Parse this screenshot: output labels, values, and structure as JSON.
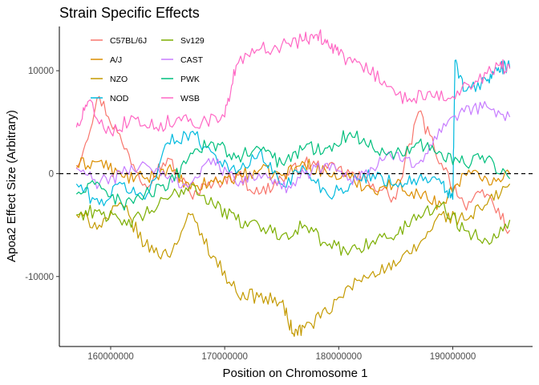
{
  "chart_data": {
    "type": "line",
    "title": "Strain Specific Effects",
    "xlabel": "Position on Chromosome 1",
    "ylabel": "Apoa2 Effect Size (Arbitrary)",
    "xlim": [
      155500000,
      197000000
    ],
    "ylim": [
      -16800,
      14300
    ],
    "x_ticks": [
      160000000,
      170000000,
      180000000,
      190000000
    ],
    "x_tick_labels": [
      "160000000",
      "170000000",
      "180000000",
      "190000000"
    ],
    "y_ticks": [
      -10000,
      0,
      10000
    ],
    "y_tick_labels": [
      "-10000",
      "0",
      "10000"
    ],
    "reference_line": {
      "y": 0,
      "style": "dashed"
    },
    "grid": false,
    "legend_position": "top-left",
    "legend_columns": 2,
    "series": [
      {
        "name": "C57BL/6J",
        "color": "#F8766D",
        "x": [
          157000000,
          159000000,
          161000000,
          163000000,
          165000000,
          167000000,
          169000000,
          171000000,
          173000000,
          175000000,
          177000000,
          179000000,
          181000000,
          183000000,
          185000000,
          187000000,
          189000000,
          191000000,
          193000000,
          195000000
        ],
        "y": [
          500,
          7500,
          3000,
          -1000,
          1500,
          -2000,
          -1000,
          0,
          -2000,
          -500,
          1000,
          500,
          0,
          -1000,
          -2500,
          6000,
          1000,
          -3000,
          -2000,
          -5500
        ]
      },
      {
        "name": "A/J",
        "color": "#DB8E00",
        "x": [
          157000000,
          159000000,
          161000000,
          163000000,
          165000000,
          167000000,
          169000000,
          171000000,
          173000000,
          175000000,
          177000000,
          179000000,
          181000000,
          183000000,
          185000000,
          187000000,
          189000000,
          191000000,
          193000000,
          195000000
        ],
        "y": [
          800,
          1200,
          -300,
          -500,
          500,
          -1500,
          -800,
          -300,
          300,
          -200,
          1000,
          0,
          -500,
          -1500,
          -1000,
          -2000,
          -3000,
          0,
          -500,
          0
        ]
      },
      {
        "name": "NZO",
        "color": "#C49A00",
        "x": [
          157000000,
          159000000,
          161000000,
          163000000,
          165000000,
          167000000,
          169000000,
          171000000,
          173000000,
          175000000,
          176000000,
          177000000,
          179000000,
          181000000,
          183000000,
          185000000,
          187000000,
          189000000,
          191000000,
          193000000,
          195000000
        ],
        "y": [
          -4000,
          -5000,
          -3000,
          -7000,
          -8000,
          -4000,
          -8000,
          -11500,
          -12000,
          -12500,
          -15500,
          -15000,
          -13500,
          -11000,
          -9500,
          -9000,
          -7000,
          -4000,
          -4500,
          -3000,
          -1000
        ]
      },
      {
        "name": "NOD",
        "color": "#00BADE",
        "x": [
          157000000,
          159000000,
          161000000,
          163000000,
          165000000,
          167000000,
          169000000,
          171000000,
          173000000,
          175000000,
          177000000,
          179000000,
          181000000,
          183000000,
          185000000,
          187000000,
          189000000,
          190000000,
          190200000,
          191000000,
          193000000,
          194000000,
          195000000
        ],
        "y": [
          -1000,
          -3000,
          -1000,
          -2500,
          3000,
          4000,
          2000,
          0,
          2000,
          -1000,
          500,
          -2000,
          -1000,
          0,
          -1000,
          -500,
          -1000,
          -2500,
          11000,
          8000,
          9000,
          10300,
          10300
        ]
      },
      {
        "name": "Sv129",
        "color": "#7CAE00",
        "x": [
          157000000,
          159000000,
          161000000,
          163000000,
          165000000,
          167000000,
          169000000,
          171000000,
          173000000,
          175000000,
          177000000,
          179000000,
          181000000,
          183000000,
          185000000,
          187000000,
          189000000,
          191000000,
          193000000,
          195000000
        ],
        "y": [
          -4000,
          -3500,
          -5000,
          -4000,
          -2500,
          -1000,
          -3000,
          -4500,
          -5000,
          -6000,
          -5000,
          -7000,
          -7500,
          -6500,
          -6000,
          -4000,
          -3000,
          -5500,
          -6500,
          -4500
        ]
      },
      {
        "name": "CAST",
        "color": "#C77CFF",
        "x": [
          157000000,
          159000000,
          161000000,
          163000000,
          165000000,
          167000000,
          169000000,
          171000000,
          173000000,
          175000000,
          177000000,
          179000000,
          181000000,
          183000000,
          185000000,
          187000000,
          189000000,
          191000000,
          193000000,
          195000000
        ],
        "y": [
          500,
          -1000,
          0,
          1000,
          -500,
          -1000,
          1500,
          -1000,
          0,
          -1500,
          0,
          1000,
          -500,
          500,
          2000,
          1000,
          4000,
          6000,
          6500,
          5500
        ]
      },
      {
        "name": "PWK",
        "color": "#00BF7D",
        "x": [
          157000000,
          159000000,
          161000000,
          163000000,
          165000000,
          167000000,
          169000000,
          171000000,
          173000000,
          175000000,
          177000000,
          179000000,
          181000000,
          183000000,
          185000000,
          187000000,
          189000000,
          191000000,
          193000000,
          195000000
        ],
        "y": [
          -2000,
          -1000,
          -3000,
          -2000,
          -1500,
          2000,
          3000,
          1500,
          2500,
          1000,
          2500,
          2500,
          4000,
          2500,
          2000,
          3000,
          2000,
          1000,
          1500,
          -500
        ]
      },
      {
        "name": "WSB",
        "color": "#FF67C4",
        "x": [
          157000000,
          158000000,
          160000000,
          162000000,
          164000000,
          166000000,
          168000000,
          170000000,
          171000000,
          173000000,
          175000000,
          177000000,
          178000000,
          179000000,
          180000000,
          182000000,
          184000000,
          186000000,
          188000000,
          190000000,
          192000000,
          194000000,
          195000000
        ],
        "y": [
          4500,
          7000,
          4000,
          5500,
          4500,
          5500,
          5000,
          5500,
          10500,
          12000,
          12500,
          13000,
          13500,
          13000,
          11500,
          10500,
          9000,
          7000,
          8000,
          7500,
          9000,
          10500,
          10200
        ]
      }
    ]
  }
}
